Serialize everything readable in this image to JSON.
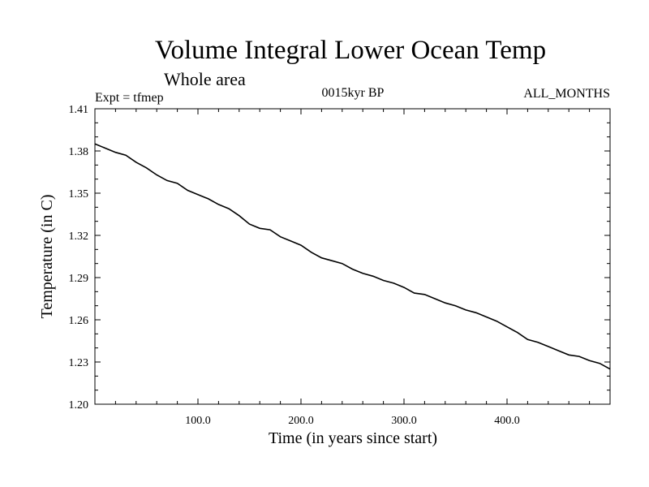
{
  "chart_data": {
    "type": "line",
    "title": "Volume Integral Lower Ocean Temp",
    "subtitle": "Whole area",
    "expt_label": "Expt = tfmep",
    "period_label": "0015kyr BP",
    "months_label": "ALL_MONTHS",
    "xlabel": "Time (in years since start)",
    "ylabel": "Temperature (in C)",
    "xlim": [
      0,
      500
    ],
    "ylim": [
      1.2,
      1.41
    ],
    "xticks": [
      100,
      200,
      300,
      400
    ],
    "xtick_labels": [
      "100.0",
      "200.0",
      "300.0",
      "400.0"
    ],
    "yticks": [
      1.2,
      1.23,
      1.26,
      1.29,
      1.32,
      1.35,
      1.38,
      1.41
    ],
    "ytick_labels": [
      "1.20",
      "1.23",
      "1.26",
      "1.29",
      "1.32",
      "1.35",
      "1.38",
      "1.41"
    ],
    "grid": false,
    "series": [
      {
        "color": "#000000",
        "x": [
          0,
          10,
          20,
          30,
          40,
          50,
          60,
          70,
          80,
          90,
          100,
          110,
          120,
          130,
          140,
          150,
          160,
          170,
          180,
          190,
          200,
          210,
          220,
          230,
          240,
          250,
          260,
          270,
          280,
          290,
          300,
          310,
          320,
          330,
          340,
          350,
          360,
          370,
          380,
          390,
          400,
          410,
          420,
          430,
          440,
          450,
          460,
          470,
          480,
          490,
          500
        ],
        "y": [
          1.385,
          1.382,
          1.379,
          1.377,
          1.372,
          1.368,
          1.363,
          1.359,
          1.357,
          1.352,
          1.349,
          1.346,
          1.342,
          1.339,
          1.334,
          1.328,
          1.325,
          1.324,
          1.319,
          1.316,
          1.313,
          1.308,
          1.304,
          1.302,
          1.3,
          1.296,
          1.293,
          1.291,
          1.288,
          1.286,
          1.283,
          1.279,
          1.278,
          1.275,
          1.272,
          1.27,
          1.267,
          1.265,
          1.262,
          1.259,
          1.255,
          1.251,
          1.246,
          1.244,
          1.241,
          1.238,
          1.235,
          1.234,
          1.231,
          1.229,
          1.225
        ]
      }
    ]
  }
}
